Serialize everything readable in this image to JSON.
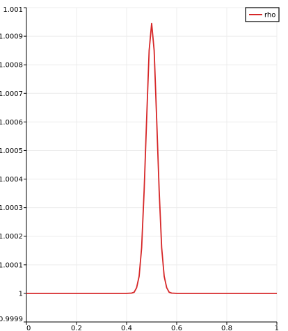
{
  "chart_data": {
    "type": "line",
    "title": "",
    "xlabel": "",
    "ylabel": "",
    "xlim": [
      0,
      1
    ],
    "ylim": [
      0.9999,
      1.001
    ],
    "x_ticks": [
      "0",
      "0.2",
      "0.4",
      "0.6",
      "0.8",
      "1"
    ],
    "y_ticks": [
      "0.9999",
      "1",
      "1.0001",
      "1.0002",
      "1.0003",
      "1.0004",
      "1.0005",
      "1.0006",
      "1.0007",
      "1.0008",
      "1.0009",
      "1.001"
    ],
    "grid": true,
    "legend": "top-right",
    "series": [
      {
        "name": "rho",
        "color": "#d62728",
        "x": [
          0,
          0.2,
          0.4,
          0.42,
          0.43,
          0.44,
          0.45,
          0.46,
          0.47,
          0.48,
          0.49,
          0.5,
          0.51,
          0.52,
          0.53,
          0.54,
          0.55,
          0.56,
          0.57,
          0.58,
          0.6,
          0.8,
          1
        ],
        "y": [
          1,
          1,
          1,
          1.000001,
          1.000004,
          1.00002,
          1.00006,
          1.00016,
          1.00036,
          1.00061,
          1.00085,
          1.000945,
          1.00085,
          1.00061,
          1.00036,
          1.00016,
          1.00006,
          1.00002,
          1.000004,
          1.000001,
          1,
          1,
          1
        ]
      }
    ]
  }
}
